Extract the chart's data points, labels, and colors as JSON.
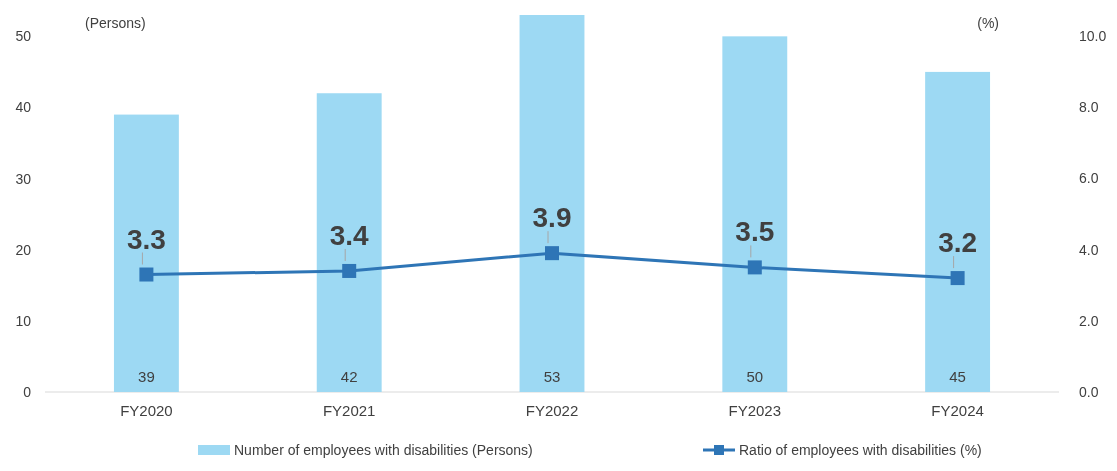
{
  "chart_data": {
    "type": "bar",
    "categories": [
      "FY2020",
      "FY2021",
      "FY2022",
      "FY2023",
      "FY2024"
    ],
    "series": [
      {
        "name": "Number of employees with disabilities (Persons)",
        "color": "#9dd9f3",
        "values": [
          39,
          42,
          53,
          50,
          45
        ]
      },
      {
        "name": "Ratio of employees with disabilities (%)",
        "type": "line",
        "axis": "y2",
        "color": "#2e75b6",
        "values": [
          3.3,
          3.4,
          3.9,
          3.5,
          3.2
        ]
      }
    ],
    "ylabel": "(Persons)",
    "y2label": "(%)",
    "ylim": [
      0,
      53
    ],
    "yticks": [
      0,
      10,
      20,
      30,
      40,
      50
    ],
    "y2lim": [
      0,
      10
    ],
    "y2ticks": [
      {
        "value": 0,
        "label": "0.0"
      },
      {
        "value": 2,
        "label": "2.0"
      },
      {
        "value": 4,
        "label": "4.0"
      },
      {
        "value": 6,
        "label": "6.0"
      },
      {
        "value": 8,
        "label": "8.0"
      },
      {
        "value": 10,
        "label": "10.0"
      }
    ],
    "data_labels": true,
    "marker": "square",
    "line_style": "solid",
    "legend": "bottom",
    "grid": false
  }
}
